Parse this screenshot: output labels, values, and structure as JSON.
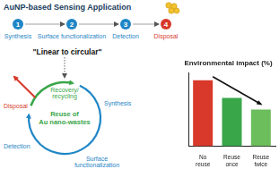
{
  "header": {
    "title": "AuNP-based Sensing Application"
  },
  "steps": [
    {
      "number": 1,
      "label": "Synthesis",
      "color": "#1f86c6"
    },
    {
      "number": 2,
      "label": "Surface functionalization",
      "color": "#1f86c6"
    },
    {
      "number": 3,
      "label": "Detection",
      "color": "#1f86c6"
    },
    {
      "number": 4,
      "label": "Disposal",
      "color": "#d8392b"
    }
  ],
  "transition": "\"Linear to circular\"",
  "cycle": {
    "center": [
      "Reuse of",
      "Au nano-wastes"
    ],
    "recovery": [
      "Recovery/",
      "recycling"
    ],
    "disposal": "Disposal",
    "synthesis": "Synthesis",
    "surface": [
      "Surface",
      "functionalization"
    ],
    "detection": "Detection"
  },
  "chart_data": {
    "type": "bar",
    "title": "Environmental impact (%)",
    "categories": [
      "No reuse",
      "Reuse once",
      "Reuse twice"
    ],
    "values": [
      90,
      66,
      50
    ],
    "colors": [
      "#d8392b",
      "#3aa64a",
      "#6cbd5c"
    ],
    "ylim": [
      0,
      100
    ],
    "grid": false,
    "tick_labels": "x"
  }
}
